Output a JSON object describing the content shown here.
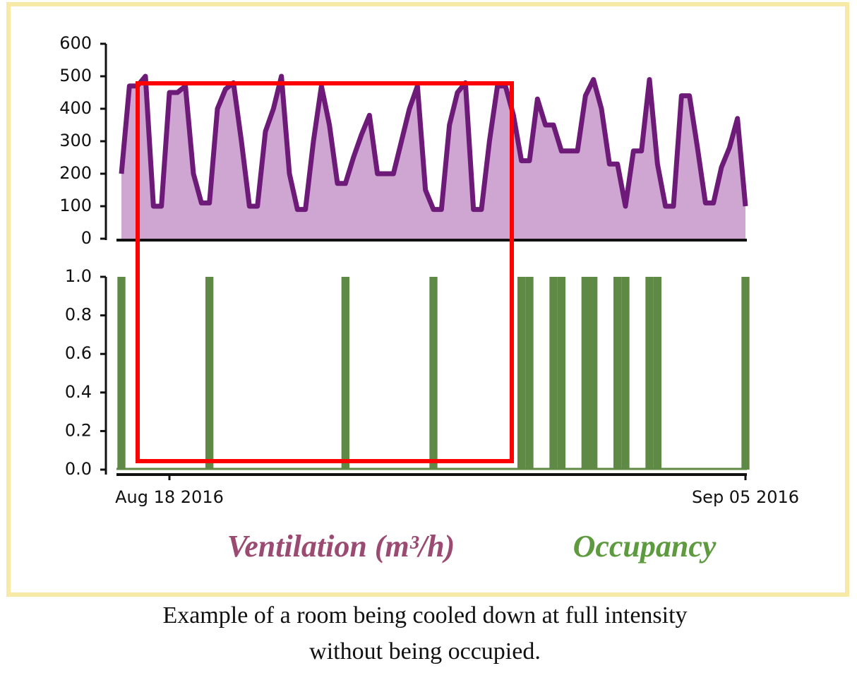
{
  "chart_data": [
    {
      "type": "area",
      "name": "Ventilation (m³/h)",
      "color": "#6d1a78",
      "fill": "#cfa6d2",
      "ylim": [
        0,
        600
      ],
      "yticks": [
        0,
        100,
        200,
        300,
        400,
        500,
        600
      ],
      "values": [
        200,
        470,
        470,
        500,
        100,
        100,
        450,
        450,
        470,
        200,
        110,
        110,
        400,
        460,
        480,
        300,
        100,
        100,
        330,
        400,
        500,
        200,
        90,
        90,
        300,
        470,
        350,
        170,
        170,
        250,
        320,
        380,
        200,
        200,
        200,
        300,
        400,
        470,
        150,
        90,
        90,
        350,
        450,
        480,
        90,
        90,
        300,
        470,
        470,
        380,
        240,
        240,
        430,
        350,
        350,
        270,
        270,
        270,
        440,
        490,
        400,
        230,
        230,
        100,
        270,
        270,
        490,
        230,
        100,
        100,
        440,
        440,
        280,
        110,
        110,
        220,
        280,
        370,
        100
      ]
    },
    {
      "type": "bar",
      "name": "Occupancy",
      "color": "#5e8a45",
      "ylim": [
        0,
        1
      ],
      "yticks": [
        {
          "value": 0,
          "label": "0.0"
        },
        {
          "value": 0.2,
          "label": "0.2"
        },
        {
          "value": 0.4,
          "label": "0.4"
        },
        {
          "value": 0.6,
          "label": "0.6"
        },
        {
          "value": 0.8,
          "label": "0.8"
        },
        {
          "value": 1,
          "label": "1.0"
        }
      ],
      "categories": [
        null,
        null,
        null,
        null,
        null,
        null,
        "Aug 18 2016",
        null,
        null,
        null,
        null,
        null,
        null,
        null,
        null,
        null,
        null,
        null,
        null,
        null,
        null,
        null,
        null,
        null,
        null,
        null,
        null,
        null,
        null,
        null,
        null,
        null,
        null,
        null,
        null,
        null,
        null,
        null,
        null,
        null,
        null,
        null,
        null,
        null,
        null,
        null,
        null,
        null,
        null,
        null,
        null,
        null,
        null,
        null,
        null,
        null,
        null,
        null,
        null,
        null,
        null,
        null,
        null,
        null,
        null,
        null,
        null,
        null,
        null,
        null,
        null,
        null,
        null,
        null,
        null,
        null,
        null,
        null,
        "Sep 05 2016"
      ],
      "values": [
        1,
        0,
        0,
        0,
        0,
        0,
        0,
        0,
        0,
        0,
        0,
        1,
        0,
        0,
        0,
        0,
        0,
        0,
        0,
        0,
        0,
        0,
        0,
        0,
        0,
        0,
        0,
        0,
        1,
        0,
        0,
        0,
        0,
        0,
        0,
        0,
        0,
        0,
        0,
        1,
        0,
        0,
        0,
        0,
        0,
        0,
        0,
        0,
        0,
        0,
        1,
        1,
        0,
        0,
        1,
        1,
        0,
        0,
        1,
        1,
        0,
        0,
        1,
        1,
        0,
        0,
        1,
        1,
        0,
        0,
        0,
        0,
        0,
        0,
        0,
        0,
        0,
        0,
        1
      ]
    }
  ],
  "caption": [
    "Example of a room being cooled down at full intensity",
    "without being occupied."
  ]
}
